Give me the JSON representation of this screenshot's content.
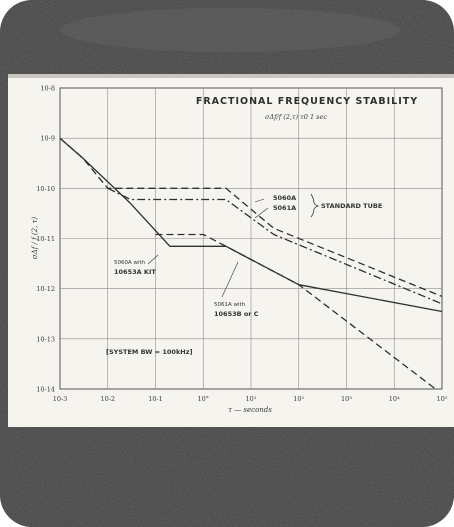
{
  "chart_data": {
    "type": "line",
    "title": "FRACTIONAL FREQUENCY STABILITY",
    "subtitle": "σΔf/f (2,τ)   τ0   1 sec",
    "xlabel": "τ — seconds",
    "ylabel": "σΔf / f (2, τ)",
    "xscale": "log",
    "yscale": "log",
    "xlim": [
      0.001,
      100000
    ],
    "ylim": [
      1e-14,
      1e-08
    ],
    "x_tick_labels": [
      "10-3",
      "10-2",
      "10-1",
      "10°",
      "10¹",
      "10²",
      "10³",
      "10⁴",
      "10⁵"
    ],
    "y_tick_labels": [
      "10-8",
      "10-9",
      "10-10",
      "10-11",
      "10-12",
      "10-13",
      "10-14"
    ],
    "grid": true,
    "series": [
      {
        "name": "5060A STANDARD TUBE",
        "style": "dashed",
        "points": [
          [
            0.001,
            1e-09
          ],
          [
            0.003,
            4e-10
          ],
          [
            0.01,
            1e-10
          ],
          [
            3,
            1e-10
          ],
          [
            30,
            1.6e-11
          ],
          [
            100000,
            7e-13
          ]
        ]
      },
      {
        "name": "5061A STANDARD TUBE",
        "style": "dashdot",
        "points": [
          [
            0.01,
            1e-10
          ],
          [
            0.03,
            6e-11
          ],
          [
            3,
            6e-11
          ],
          [
            30,
            1.2e-11
          ],
          [
            100000,
            5e-13
          ]
        ]
      },
      {
        "name": "5060A with 10653A KIT",
        "style": "solid",
        "points": [
          [
            0.001,
            1e-09
          ],
          [
            0.003,
            4e-10
          ],
          [
            0.03,
            5e-11
          ],
          [
            0.2,
            7e-12
          ],
          [
            3,
            7e-12
          ],
          [
            100,
            1.2e-12
          ],
          [
            100000,
            3.5e-13
          ]
        ]
      },
      {
        "name": "5061A with 10653B or C",
        "style": "dashed",
        "points": [
          [
            0.1,
            1.2e-11
          ],
          [
            1,
            1.2e-11
          ],
          [
            3,
            7e-12
          ],
          [
            100,
            1.2e-12
          ],
          [
            100000,
            8e-15
          ]
        ]
      }
    ],
    "annotations": {
      "tube_a": "5060A",
      "tube_b": "5061A",
      "standard_tube": "STANDARD TUBE",
      "kit_line1": "5060A with",
      "kit_line2": "10653A KIT",
      "b_line1": "5061A with",
      "b_line2": "10653B or C",
      "system_bw": "[SYSTEM BW = 100kHz]"
    }
  },
  "colors": {
    "ink": "#2f2f2f",
    "paper": "#f6f4ef",
    "frame": "#3d3d3d",
    "border": "#888580",
    "grid": "#8d8a86"
  }
}
